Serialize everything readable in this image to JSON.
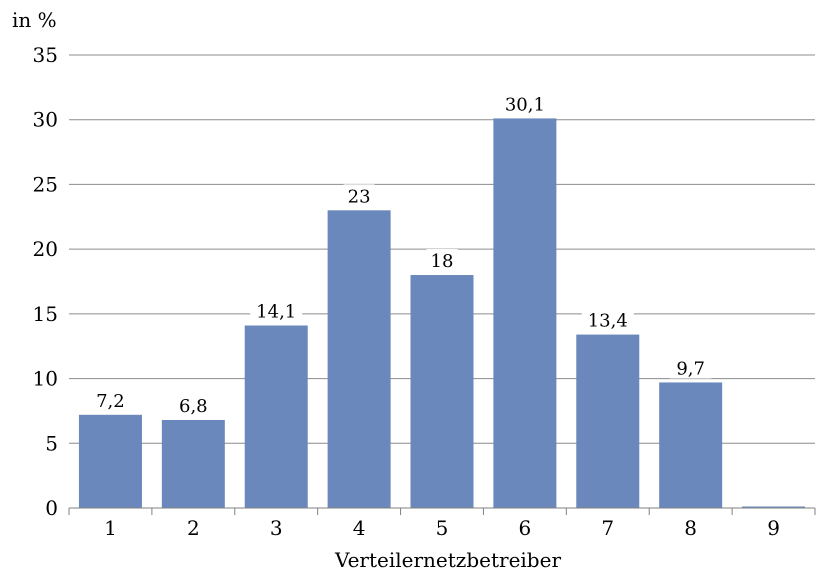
{
  "chart_data": {
    "type": "bar",
    "ylabel": "in %",
    "xlabel": "Verteilernetzbetreiber",
    "categories": [
      "1",
      "2",
      "3",
      "4",
      "5",
      "6",
      "7",
      "8",
      "9"
    ],
    "values": [
      7.2,
      6.8,
      14.1,
      23,
      18,
      30.1,
      13.4,
      9.7,
      0
    ],
    "data_labels": [
      "7,2",
      "6,8",
      "14,1",
      "23",
      "18",
      "30,1",
      "13,4",
      "9,7",
      ""
    ],
    "ylim": [
      0,
      35
    ],
    "yticks": [
      "0",
      "5",
      "10",
      "15",
      "20",
      "25",
      "30",
      "35"
    ],
    "grid": true,
    "legend": "none",
    "bar_color": "#6a88bb"
  }
}
